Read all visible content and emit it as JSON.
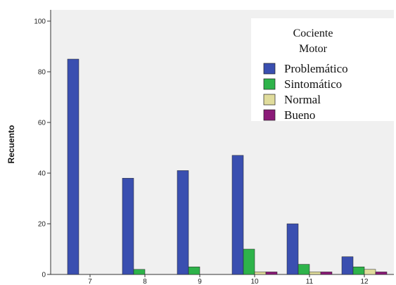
{
  "chart_data": {
    "type": "bar",
    "categories": [
      "7",
      "8",
      "9",
      "10",
      "11",
      "12"
    ],
    "ylabel": "Recuento",
    "xlabel": "",
    "ylim": [
      0,
      100
    ],
    "yticks": [
      0,
      20,
      40,
      60,
      80,
      100
    ],
    "grid": false,
    "legend": {
      "title_line1": "Cociente",
      "title_line2": "Motor",
      "placement": "top-right"
    },
    "series": [
      {
        "name": "Problemático",
        "color": "#3A4FB0",
        "values": [
          85,
          38,
          41,
          47,
          20,
          7
        ]
      },
      {
        "name": "Sintomático",
        "color": "#2EB34A",
        "values": [
          0,
          2,
          3,
          10,
          4,
          3
        ]
      },
      {
        "name": "Normal",
        "color": "#E0DC9C",
        "values": [
          0,
          0,
          0,
          1,
          1,
          2
        ]
      },
      {
        "name": "Bueno",
        "color": "#8B1A78",
        "values": [
          0,
          0,
          0,
          1,
          1,
          1
        ]
      }
    ],
    "plot_background": "#F0F0F0"
  }
}
